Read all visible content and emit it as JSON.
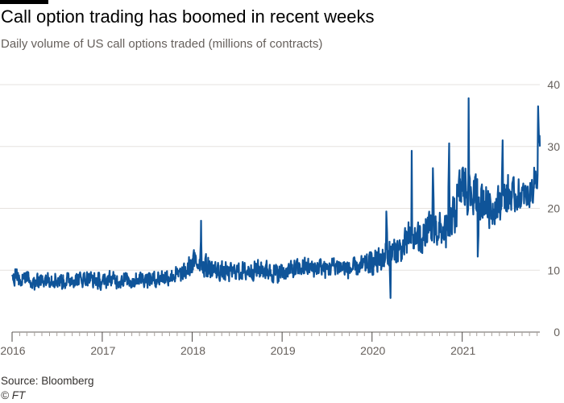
{
  "header": {
    "title": "Call option trading has boomed in recent weeks",
    "subtitle": "Daily volume of US call options traded (millions of contracts)"
  },
  "footer": {
    "source": "Source: Bloomberg",
    "copyright": "© FT"
  },
  "colors": {
    "line": "#0f5499",
    "grid": "#e6e2df",
    "axis": "#66605c",
    "topbar": "#000000"
  },
  "chart_data": {
    "type": "line",
    "title": "Call option trading has boomed in recent weeks",
    "subtitle": "Daily volume of US call options traded (millions of contracts)",
    "xlabel": "",
    "ylabel": "",
    "xlim": [
      "2016-01-01",
      "2021-11-12"
    ],
    "ylim": [
      0,
      40
    ],
    "yaxis_position": "right",
    "grid": "horizontal",
    "x_ticks": [
      "2016",
      "2017",
      "2018",
      "2019",
      "2020",
      "2021"
    ],
    "y_ticks": [
      0,
      10,
      20,
      30,
      40
    ],
    "series": [
      {
        "name": "",
        "x": [
          "2016-01-01",
          "2016-02-01",
          "2016-03-01",
          "2016-04-01",
          "2016-05-01",
          "2016-06-01",
          "2016-07-01",
          "2016-08-01",
          "2016-09-01",
          "2016-10-01",
          "2016-11-01",
          "2016-12-01",
          "2017-01-01",
          "2017-02-01",
          "2017-03-01",
          "2017-04-01",
          "2017-05-01",
          "2017-06-01",
          "2017-07-01",
          "2017-08-01",
          "2017-09-01",
          "2017-10-01",
          "2017-11-01",
          "2017-12-01",
          "2018-01-01",
          "2018-02-01",
          "2018-03-01",
          "2018-04-01",
          "2018-05-01",
          "2018-06-01",
          "2018-07-01",
          "2018-08-01",
          "2018-09-01",
          "2018-10-01",
          "2018-11-01",
          "2018-12-01",
          "2019-01-01",
          "2019-02-01",
          "2019-03-01",
          "2019-04-01",
          "2019-05-01",
          "2019-06-01",
          "2019-07-01",
          "2019-08-01",
          "2019-09-01",
          "2019-10-01",
          "2019-11-01",
          "2019-12-01",
          "2020-01-01",
          "2020-02-01",
          "2020-03-01",
          "2020-04-01",
          "2020-05-01",
          "2020-06-01",
          "2020-07-01",
          "2020-08-01",
          "2020-09-01",
          "2020-10-01",
          "2020-11-01",
          "2020-12-01",
          "2021-01-01",
          "2021-02-01",
          "2021-03-01",
          "2021-04-01",
          "2021-05-01",
          "2021-06-01",
          "2021-07-01",
          "2021-08-01",
          "2021-09-01",
          "2021-10-01",
          "2021-11-01",
          "2021-11-12"
        ],
        "values": [
          9.2,
          8.5,
          9,
          8,
          8.5,
          8.7,
          8.4,
          8.2,
          8.6,
          8.5,
          8.8,
          8.4,
          8,
          8.7,
          8.3,
          8.5,
          8.2,
          8.7,
          8.6,
          8.5,
          8.9,
          9,
          9.2,
          9.5,
          11,
          11.5,
          10.5,
          10,
          9.8,
          9.6,
          9.9,
          9.7,
          10,
          10.2,
          10,
          9.5,
          9.6,
          10,
          10.2,
          10.5,
          10.3,
          10.5,
          10.2,
          10.8,
          10.5,
          10.2,
          10.4,
          10.8,
          11.2,
          11.5,
          12.5,
          13,
          13.5,
          15,
          15,
          15.5,
          17,
          16.5,
          16,
          19,
          24,
          22,
          22,
          21,
          20,
          21,
          22,
          22,
          22,
          22,
          26,
          30
        ],
        "noise": [
          2,
          1.6,
          1.6,
          1.6,
          1.6,
          1.6,
          1.6,
          1.6,
          1.6,
          1.6,
          1.6,
          1.6,
          1.5,
          1.5,
          1.5,
          1.5,
          1.5,
          1.5,
          1.5,
          1.5,
          1.5,
          1.6,
          1.6,
          1.7,
          2.3,
          2.6,
          2.1,
          1.9,
          1.8,
          1.8,
          1.8,
          1.8,
          1.8,
          2,
          1.9,
          1.8,
          1.8,
          1.8,
          1.8,
          1.8,
          1.8,
          1.8,
          1.8,
          1.9,
          1.8,
          1.8,
          1.8,
          1.9,
          2.1,
          2.6,
          3.2,
          2.6,
          2.6,
          3.6,
          3,
          3,
          3.8,
          3.4,
          3,
          4.2,
          5.2,
          4.6,
          4.2,
          3.8,
          3.6,
          3.4,
          3.8,
          3.2,
          2.8,
          2.8,
          3.8,
          4.2
        ],
        "peaks": [
          {
            "date": "2018-02-06",
            "value": 18
          },
          {
            "date": "2020-02-28",
            "value": 19.5
          },
          {
            "date": "2020-03-16",
            "value": 5.5
          },
          {
            "date": "2020-06-10",
            "value": 29.3
          },
          {
            "date": "2020-09-04",
            "value": 26.5
          },
          {
            "date": "2020-11-09",
            "value": 30.5
          },
          {
            "date": "2021-01-27",
            "value": 37.8
          },
          {
            "date": "2021-03-05",
            "value": 12.2
          },
          {
            "date": "2021-06-14",
            "value": 31
          },
          {
            "date": "2021-11-05",
            "value": 36.5
          }
        ]
      }
    ]
  }
}
